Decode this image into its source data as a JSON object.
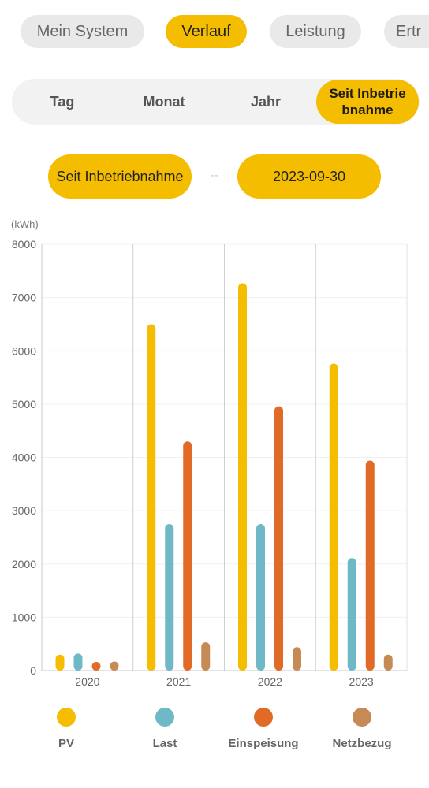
{
  "top_tabs": [
    {
      "label": "Mein System",
      "active": false
    },
    {
      "label": "Verlauf",
      "active": true
    },
    {
      "label": "Leistung",
      "active": false
    },
    {
      "label": "Ertr",
      "active": false
    }
  ],
  "period_tabs": [
    {
      "label": "Tag",
      "active": false
    },
    {
      "label": "Monat",
      "active": false
    },
    {
      "label": "Jahr",
      "active": false
    },
    {
      "label": "Seit Inbetrie bnahme",
      "active": true
    }
  ],
  "date_range": {
    "start": "Seit Inbetriebnahme",
    "separator": "--",
    "end": "2023-09-30"
  },
  "colors": {
    "accent": "#f5bd00",
    "pv": "#f5bd00",
    "last": "#6fb9c6",
    "einspeisung": "#e06a26",
    "netzbezug": "#c68a55"
  },
  "chart_data": {
    "type": "bar",
    "unit_label": "(kWh)",
    "categories": [
      "2020",
      "2021",
      "2022",
      "2023"
    ],
    "ylim": [
      0,
      8000
    ],
    "yticks": [
      0,
      1000,
      2000,
      3000,
      4000,
      5000,
      6000,
      7000,
      8000
    ],
    "grid": true,
    "legend_position": "bottom",
    "series": [
      {
        "name": "PV",
        "color": "#f5bd00",
        "values": [
          300,
          6500,
          7270,
          5760
        ]
      },
      {
        "name": "Last",
        "color": "#6fb9c6",
        "values": [
          320,
          2750,
          2750,
          2110
        ]
      },
      {
        "name": "Einspeisung",
        "color": "#e06a26",
        "values": [
          140,
          4300,
          4960,
          3940
        ]
      },
      {
        "name": "Netzbezug",
        "color": "#c68a55",
        "values": [
          170,
          530,
          440,
          300
        ]
      }
    ]
  }
}
